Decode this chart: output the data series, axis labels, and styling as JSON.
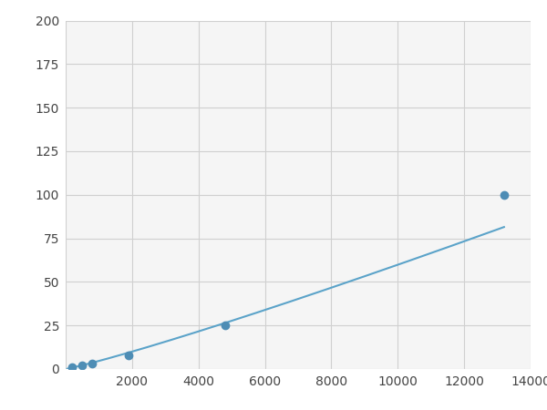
{
  "x": [
    200,
    500,
    800,
    1900,
    4800,
    13200
  ],
  "y": [
    1.0,
    2.0,
    3.0,
    8.0,
    25.0,
    100.0
  ],
  "line_color": "#5ba3c9",
  "marker_color": "#4e8db5",
  "marker_size": 6,
  "line_width": 1.5,
  "xlim": [
    0,
    14000
  ],
  "ylim": [
    0,
    200
  ],
  "xticks": [
    0,
    2000,
    4000,
    6000,
    8000,
    10000,
    12000,
    14000
  ],
  "yticks": [
    0,
    25,
    50,
    75,
    100,
    125,
    150,
    175,
    200
  ],
  "grid_color": "#d0d0d0",
  "background_color": "#f5f5f5",
  "figure_background": "#ffffff",
  "tick_fontsize": 10,
  "tick_color": "#444444"
}
